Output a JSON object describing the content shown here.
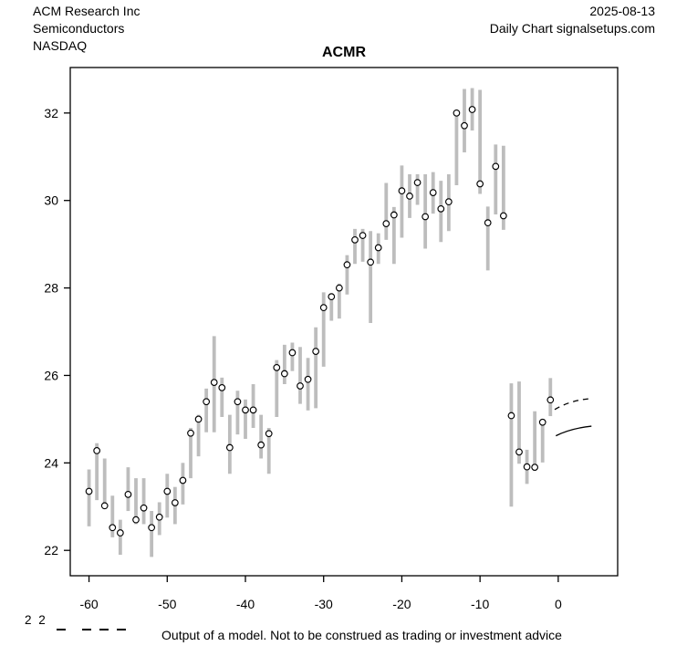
{
  "header": {
    "company": "ACM Research Inc",
    "sector": "Semiconductors",
    "exchange": "NASDAQ",
    "date": "2025-08-13",
    "chart_type": "Daily Chart signalsetups.com"
  },
  "footer": {
    "legend_fragment": "2 2",
    "legend_dash_count": 4,
    "caption": "Output of a model. Not to be construed as trading or investment advice"
  },
  "chart_data": {
    "type": "hlc-bar",
    "title": "ACMR",
    "xlabel": "",
    "ylabel": "",
    "x_ticks": [
      -60,
      -50,
      -40,
      -30,
      -20,
      -10,
      0
    ],
    "y_ticks": [
      22,
      24,
      26,
      28,
      30,
      32
    ],
    "xlim": [
      -62.4,
      7.6
    ],
    "ylim": [
      21.42,
      33.04
    ],
    "grid": false,
    "legend_position": "none",
    "bar_color": "#bdbdbd",
    "axis_color": "#000000",
    "marker_fill": "#ffffff",
    "marker_stroke": "#000000",
    "bars": [
      {
        "day": -60,
        "low": 22.55,
        "high": 23.85,
        "close": 23.35
      },
      {
        "day": -59,
        "low": 23.15,
        "high": 24.45,
        "close": 24.28
      },
      {
        "day": -58,
        "low": 22.95,
        "high": 24.1,
        "close": 23.02
      },
      {
        "day": -57,
        "low": 22.3,
        "high": 23.25,
        "close": 22.52
      },
      {
        "day": -56,
        "low": 21.9,
        "high": 22.7,
        "close": 22.4
      },
      {
        "day": -55,
        "low": 22.9,
        "high": 23.9,
        "close": 23.28
      },
      {
        "day": -54,
        "low": 22.6,
        "high": 23.65,
        "close": 22.7
      },
      {
        "day": -53,
        "low": 22.6,
        "high": 23.65,
        "close": 22.97
      },
      {
        "day": -52,
        "low": 21.85,
        "high": 22.9,
        "close": 22.52
      },
      {
        "day": -51,
        "low": 22.35,
        "high": 23.1,
        "close": 22.76
      },
      {
        "day": -50,
        "low": 22.75,
        "high": 23.75,
        "close": 23.35
      },
      {
        "day": -49,
        "low": 22.6,
        "high": 23.45,
        "close": 23.09
      },
      {
        "day": -48,
        "low": 23.05,
        "high": 24.0,
        "close": 23.6
      },
      {
        "day": -47,
        "low": 23.65,
        "high": 24.8,
        "close": 24.68
      },
      {
        "day": -46,
        "low": 24.15,
        "high": 25.1,
        "close": 25.0
      },
      {
        "day": -45,
        "low": 24.7,
        "high": 25.7,
        "close": 25.4
      },
      {
        "day": -44,
        "low": 24.7,
        "high": 26.9,
        "close": 25.84
      },
      {
        "day": -43,
        "low": 25.05,
        "high": 25.95,
        "close": 25.72
      },
      {
        "day": -42,
        "low": 23.75,
        "high": 25.1,
        "close": 24.35
      },
      {
        "day": -41,
        "low": 24.65,
        "high": 25.65,
        "close": 25.4
      },
      {
        "day": -40,
        "low": 24.55,
        "high": 25.45,
        "close": 25.21
      },
      {
        "day": -39,
        "low": 24.8,
        "high": 25.8,
        "close": 25.21
      },
      {
        "day": -38,
        "low": 24.1,
        "high": 25.1,
        "close": 24.41
      },
      {
        "day": -37,
        "low": 23.75,
        "high": 24.8,
        "close": 24.67
      },
      {
        "day": -36,
        "low": 25.05,
        "high": 26.35,
        "close": 26.18
      },
      {
        "day": -35,
        "low": 25.8,
        "high": 26.7,
        "close": 26.04
      },
      {
        "day": -34,
        "low": 26.1,
        "high": 26.75,
        "close": 26.52
      },
      {
        "day": -33,
        "low": 25.35,
        "high": 26.65,
        "close": 25.76
      },
      {
        "day": -32,
        "low": 25.2,
        "high": 26.4,
        "close": 25.91
      },
      {
        "day": -31,
        "low": 25.25,
        "high": 27.1,
        "close": 26.55
      },
      {
        "day": -30,
        "low": 26.2,
        "high": 27.9,
        "close": 27.55
      },
      {
        "day": -29,
        "low": 27.25,
        "high": 27.85,
        "close": 27.8
      },
      {
        "day": -28,
        "low": 27.3,
        "high": 28.1,
        "close": 28.0
      },
      {
        "day": -27,
        "low": 27.85,
        "high": 28.75,
        "close": 28.53
      },
      {
        "day": -26,
        "low": 28.55,
        "high": 29.35,
        "close": 29.1
      },
      {
        "day": -25,
        "low": 28.6,
        "high": 29.35,
        "close": 29.2
      },
      {
        "day": -24,
        "low": 27.2,
        "high": 29.3,
        "close": 28.59
      },
      {
        "day": -23,
        "low": 28.55,
        "high": 29.25,
        "close": 28.92
      },
      {
        "day": -22,
        "low": 29.1,
        "high": 30.4,
        "close": 29.47
      },
      {
        "day": -21,
        "low": 28.55,
        "high": 29.85,
        "close": 29.67
      },
      {
        "day": -20,
        "low": 29.15,
        "high": 30.8,
        "close": 30.22
      },
      {
        "day": -19,
        "low": 29.6,
        "high": 30.6,
        "close": 30.1
      },
      {
        "day": -18,
        "low": 29.9,
        "high": 30.6,
        "close": 30.41
      },
      {
        "day": -17,
        "low": 28.9,
        "high": 30.6,
        "close": 29.63
      },
      {
        "day": -16,
        "low": 29.7,
        "high": 30.65,
        "close": 30.18
      },
      {
        "day": -15,
        "low": 29.05,
        "high": 30.45,
        "close": 29.81
      },
      {
        "day": -14,
        "low": 29.3,
        "high": 30.6,
        "close": 29.97
      },
      {
        "day": -13,
        "low": 30.35,
        "high": 32.05,
        "close": 32.0
      },
      {
        "day": -12,
        "low": 31.1,
        "high": 32.55,
        "close": 31.71
      },
      {
        "day": -11,
        "low": 31.6,
        "high": 32.57,
        "close": 32.08
      },
      {
        "day": -10,
        "low": 30.15,
        "high": 32.53,
        "close": 30.38
      },
      {
        "day": -9,
        "low": 28.4,
        "high": 29.86,
        "close": 29.49
      },
      {
        "day": -8,
        "low": 29.68,
        "high": 31.28,
        "close": 30.78
      },
      {
        "day": -7,
        "low": 29.33,
        "high": 31.25,
        "close": 29.65
      },
      {
        "day": -6,
        "low": 23.0,
        "high": 25.82,
        "close": 25.08
      },
      {
        "day": -5,
        "low": 23.98,
        "high": 25.86,
        "close": 24.25
      },
      {
        "day": -4,
        "low": 23.52,
        "high": 24.3,
        "close": 23.91
      },
      {
        "day": -3,
        "low": 23.82,
        "high": 25.18,
        "close": 23.9
      },
      {
        "day": -2,
        "low": 24.01,
        "high": 24.98,
        "close": 24.93
      },
      {
        "day": -1,
        "low": 25.07,
        "high": 25.94,
        "close": 25.44
      }
    ],
    "forecast": {
      "dashed_line": [
        [
          -0.45,
          25.22
        ],
        [
          1.6,
          25.44
        ],
        [
          4.25,
          25.47
        ]
      ],
      "solid_line": [
        [
          -0.3,
          24.62
        ],
        [
          1.6,
          24.79
        ],
        [
          4.25,
          24.84
        ]
      ],
      "color": "#000000"
    }
  }
}
